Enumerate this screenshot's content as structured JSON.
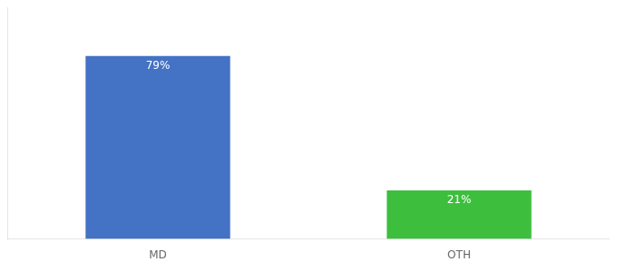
{
  "chart_data": {
    "type": "bar",
    "categories": [
      "MD",
      "OTH"
    ],
    "values": [
      79,
      21
    ],
    "value_labels": [
      "79%",
      "21%"
    ],
    "colors": [
      "#4472c4",
      "#3dbf3d"
    ],
    "ylim": [
      0,
      100
    ],
    "grid": false,
    "data_labels": true,
    "tick_labels": "x"
  }
}
